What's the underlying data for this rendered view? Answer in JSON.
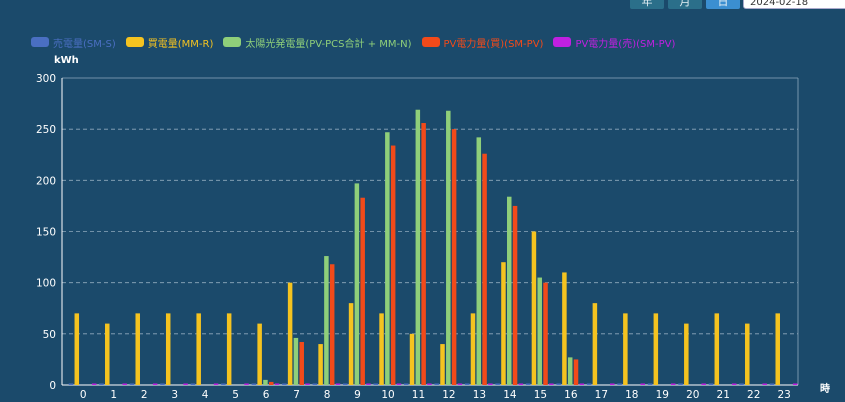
{
  "toolbar": {
    "buttons": [
      {
        "label": "年",
        "active": false
      },
      {
        "label": "月",
        "active": false
      },
      {
        "label": "日",
        "active": true
      }
    ],
    "date_value": "2024-02-18"
  },
  "chart_data": {
    "type": "bar",
    "ylabel": "kWh",
    "xlabel": "時",
    "ylim": [
      0,
      300
    ],
    "yticks": [
      0,
      50,
      100,
      150,
      200,
      250,
      300
    ],
    "grid": true,
    "legend_position": "top-left",
    "categories": [
      "0",
      "1",
      "2",
      "3",
      "4",
      "5",
      "6",
      "7",
      "8",
      "9",
      "10",
      "11",
      "12",
      "13",
      "14",
      "15",
      "16",
      "17",
      "18",
      "19",
      "20",
      "21",
      "22",
      "23"
    ],
    "series": [
      {
        "name": "売電量(SM-S)",
        "color": "#4a6fc2",
        "values": [
          0,
          0,
          0,
          0,
          0,
          0,
          0,
          0,
          0,
          0,
          0,
          0,
          0,
          0,
          0,
          0,
          0,
          0,
          0,
          0,
          0,
          0,
          0,
          0
        ]
      },
      {
        "name": "買電量(MM-R)",
        "color": "#f5c320",
        "values": [
          70,
          60,
          70,
          70,
          70,
          70,
          60,
          100,
          40,
          80,
          70,
          50,
          40,
          70,
          120,
          150,
          110,
          80,
          70,
          70,
          60,
          70,
          60,
          70
        ]
      },
      {
        "name": "太陽光発電量(PV-PCS合計 + MM-N)",
        "color": "#8fcf7a",
        "values": [
          0,
          0,
          0,
          0,
          0,
          0,
          5,
          46,
          126,
          197,
          247,
          269,
          268,
          242,
          184,
          105,
          27,
          0,
          0,
          0,
          0,
          0,
          0,
          0
        ]
      },
      {
        "name": "PV電力量(買)(SM-PV)",
        "color": "#f24a1a",
        "values": [
          0,
          0,
          0,
          0,
          0,
          0,
          3,
          42,
          118,
          183,
          234,
          256,
          250,
          226,
          175,
          100,
          25,
          0,
          0,
          0,
          0,
          0,
          0,
          0
        ]
      },
      {
        "name": "PV電力量(売)(SM-PV)",
        "color": "#c020e0",
        "values": [
          0,
          0,
          0,
          0,
          0,
          0,
          0,
          0,
          0,
          0,
          0,
          0,
          0,
          0,
          0,
          0,
          0,
          0,
          0,
          0,
          0,
          0,
          0,
          0
        ]
      }
    ]
  }
}
